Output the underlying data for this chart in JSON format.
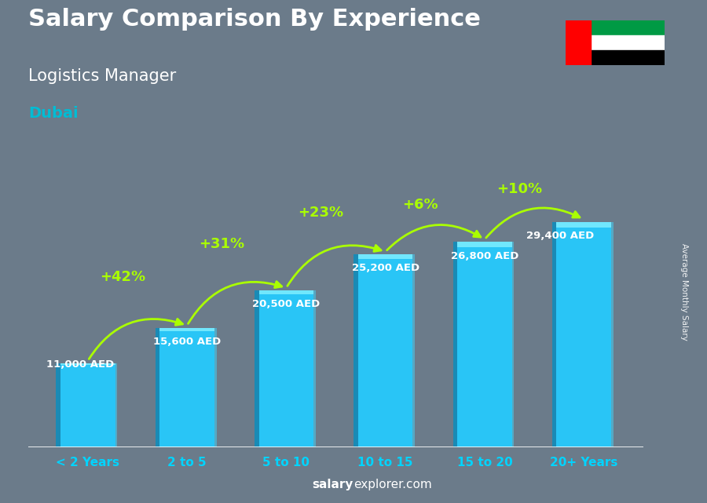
{
  "title": "Salary Comparison By Experience",
  "subtitle": "Logistics Manager",
  "city": "Dubai",
  "categories": [
    "< 2 Years",
    "2 to 5",
    "5 to 10",
    "10 to 15",
    "15 to 20",
    "20+ Years"
  ],
  "values": [
    11000,
    15600,
    20500,
    25200,
    26800,
    29400
  ],
  "value_labels": [
    "11,000 AED",
    "15,600 AED",
    "20,500 AED",
    "25,200 AED",
    "26,800 AED",
    "29,400 AED"
  ],
  "pct_labels": [
    "+42%",
    "+31%",
    "+23%",
    "+6%",
    "+10%"
  ],
  "bar_main_color": "#29c5f6",
  "bar_left_color": "#1a8ab5",
  "bar_right_color": "#40d8ff",
  "bar_top_color": "#7eeeff",
  "bg_color": "#6b7b8a",
  "title_color": "#ffffff",
  "subtitle_color": "#ffffff",
  "city_color": "#00bcd4",
  "label_color": "#ffffff",
  "pct_color": "#aaff00",
  "arrow_color": "#aaff00",
  "xticklabel_color": "#00d4ff",
  "footer_salary": "salary",
  "footer_rest": "explorer.com",
  "ylabel_text": "Average Monthly Salary",
  "ylim": [
    0,
    36000
  ],
  "bar_width": 0.55,
  "depth": 0.08
}
